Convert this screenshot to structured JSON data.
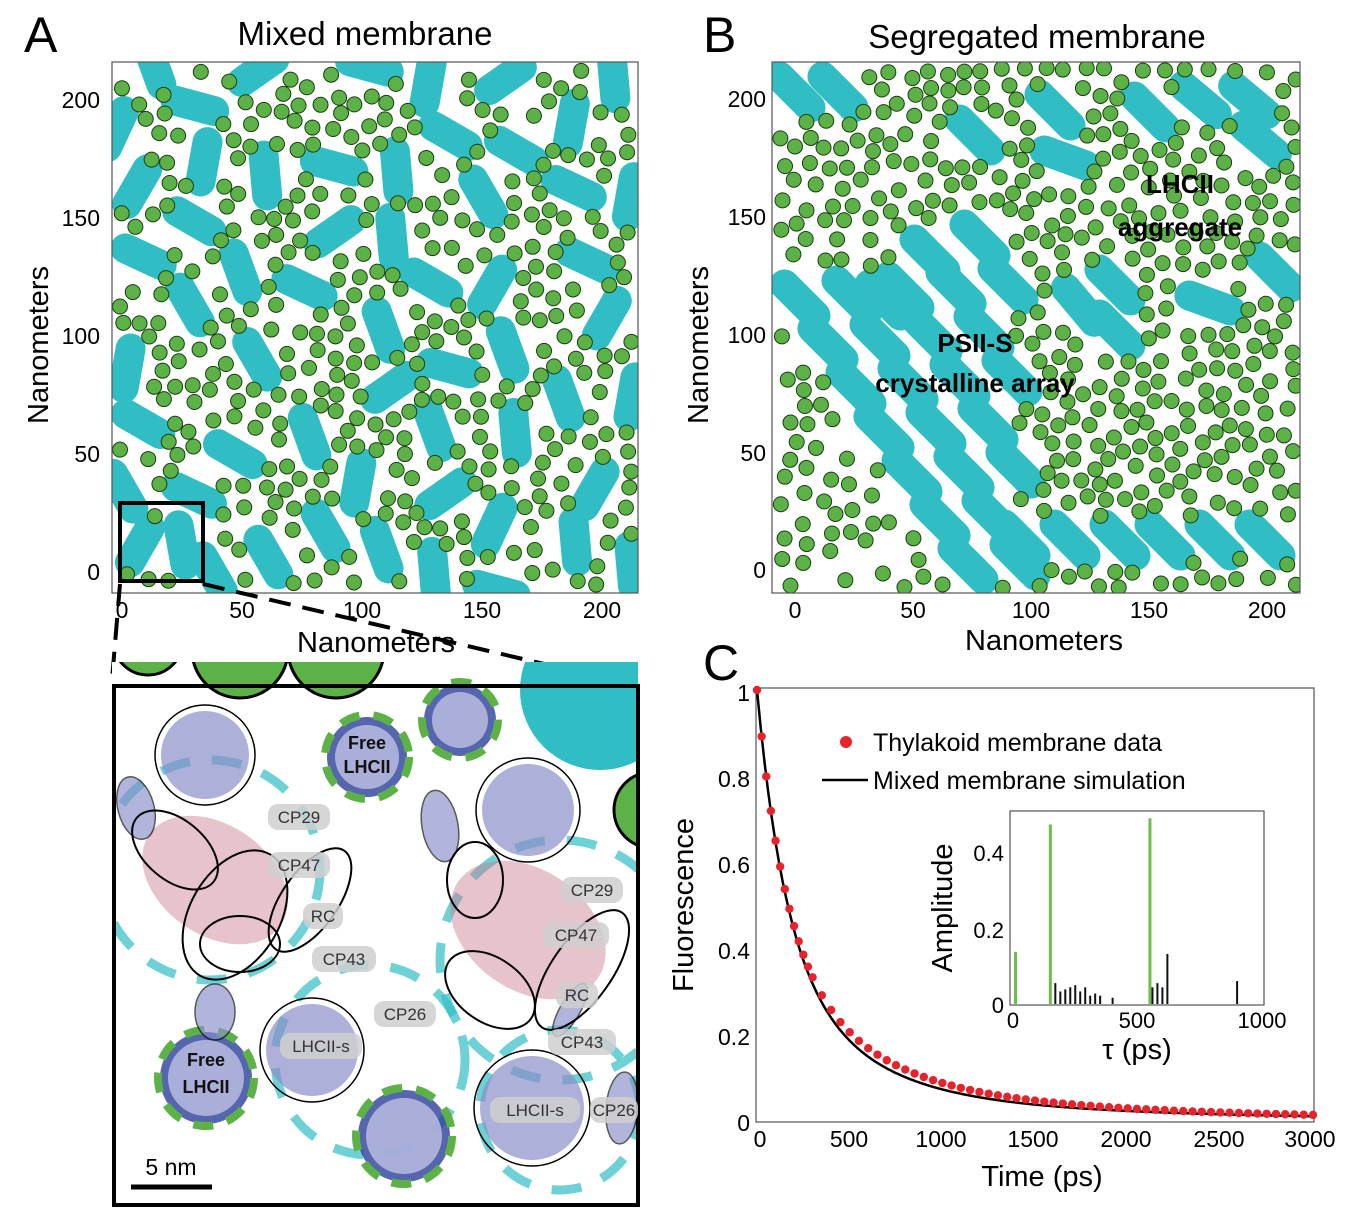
{
  "panel_a": {
    "letter": "A",
    "title": "Mixed membrane",
    "xlabel": "Nanometers",
    "ylabel": "Nanometers",
    "xticks": [
      "0",
      "50",
      "100",
      "150",
      "200"
    ],
    "yticks": [
      "0",
      "50",
      "100",
      "150",
      "200"
    ]
  },
  "panel_b": {
    "letter": "B",
    "title": "Segregated membrane",
    "xlabel": "Nanometers",
    "ylabel": "Nanometers",
    "xticks": [
      "0",
      "50",
      "100",
      "150",
      "200"
    ],
    "yticks": [
      "0",
      "50",
      "100",
      "150",
      "200"
    ],
    "annotation_lhcii_line1": "LHCII",
    "annotation_lhcii_line2": "aggregate",
    "annotation_psii_line1": "PSII-S",
    "annotation_psii_line2": "crystalline array"
  },
  "zoom": {
    "labels": [
      "CP29",
      "CP47",
      "RC",
      "CP43",
      "CP26",
      "LHCII-s",
      "CP29",
      "CP47",
      "RC",
      "CP43",
      "LHCII-s",
      "CP26"
    ],
    "free_line1": "Free",
    "free_line2": "LHCII",
    "scale_bar": "5 nm"
  },
  "panel_c": {
    "letter": "C",
    "xlabel": "Time (ps)",
    "ylabel": "Fluorescence",
    "xticks": [
      "0",
      "500",
      "1000",
      "1500",
      "2000",
      "2500",
      "3000"
    ],
    "yticks": [
      "0",
      "0.2",
      "0.4",
      "0.6",
      "0.8",
      "1"
    ],
    "legend_data": "Thylakoid membrane data",
    "legend_sim": "Mixed membrane simulation",
    "inset_xlabel": "τ (ps)",
    "inset_ylabel": "Amplitude",
    "inset_xticks": [
      "0",
      "500",
      "1000"
    ],
    "inset_yticks": [
      "0",
      "0.2",
      "0.4"
    ]
  },
  "colors": {
    "lhcii": "#5cb247",
    "psii": "#30bec4",
    "data_points": "#e8222a",
    "simulation": "#000000",
    "inset_green": "#6cc04a",
    "inset_black": "#111111"
  },
  "chart_data": {
    "type": "scatter",
    "x": [
      0,
      100,
      200,
      300,
      400,
      500,
      600,
      700,
      800,
      900,
      1000,
      1100,
      1200,
      1300,
      1400,
      1500,
      1600,
      1700,
      1800,
      1900,
      2000,
      2100,
      2200,
      2300,
      2400,
      2500,
      2600,
      2700,
      2800,
      2900,
      3000
    ],
    "series": [
      {
        "name": "Thylakoid membrane data",
        "values": [
          1.0,
          0.74,
          0.54,
          0.42,
          0.33,
          0.26,
          0.21,
          0.17,
          0.14,
          0.12,
          0.1,
          0.085,
          0.072,
          0.062,
          0.054,
          0.047,
          0.041,
          0.036,
          0.032,
          0.028,
          0.025,
          0.022,
          0.019,
          0.017,
          0.015,
          0.013,
          0.012,
          0.011,
          0.01,
          0.009,
          0.008
        ]
      },
      {
        "name": "Mixed membrane simulation",
        "values": [
          1.0,
          0.71,
          0.51,
          0.39,
          0.31,
          0.25,
          0.2,
          0.165,
          0.137,
          0.115,
          0.097,
          0.083,
          0.071,
          0.061,
          0.053,
          0.046,
          0.04,
          0.035,
          0.031,
          0.027,
          0.024,
          0.021,
          0.019,
          0.017,
          0.015,
          0.013,
          0.012,
          0.011,
          0.01,
          0.009,
          0.008
        ]
      }
    ],
    "xlim": [
      0,
      3000
    ],
    "ylim": [
      0,
      1
    ],
    "inset": {
      "type": "bar",
      "xlim": [
        0,
        1000
      ],
      "ylim": [
        0,
        0.46
      ],
      "green_bars": [
        {
          "tau": 10,
          "amp": 0.125
        },
        {
          "tau": 150,
          "amp": 0.43
        },
        {
          "tau": 550,
          "amp": 0.445
        }
      ],
      "black_bars": [
        {
          "tau": 150,
          "amp": 0.06
        },
        {
          "tau": 170,
          "amp": 0.05
        },
        {
          "tau": 190,
          "amp": 0.03
        },
        {
          "tau": 210,
          "amp": 0.035
        },
        {
          "tau": 230,
          "amp": 0.04
        },
        {
          "tau": 250,
          "amp": 0.045
        },
        {
          "tau": 270,
          "amp": 0.03
        },
        {
          "tau": 290,
          "amp": 0.04
        },
        {
          "tau": 310,
          "amp": 0.02
        },
        {
          "tau": 330,
          "amp": 0.025
        },
        {
          "tau": 350,
          "amp": 0.02
        },
        {
          "tau": 400,
          "amp": 0.015
        },
        {
          "tau": 560,
          "amp": 0.04
        },
        {
          "tau": 580,
          "amp": 0.05
        },
        {
          "tau": 600,
          "amp": 0.04
        },
        {
          "tau": 620,
          "amp": 0.12
        },
        {
          "tau": 900,
          "amp": 0.055
        }
      ]
    }
  }
}
